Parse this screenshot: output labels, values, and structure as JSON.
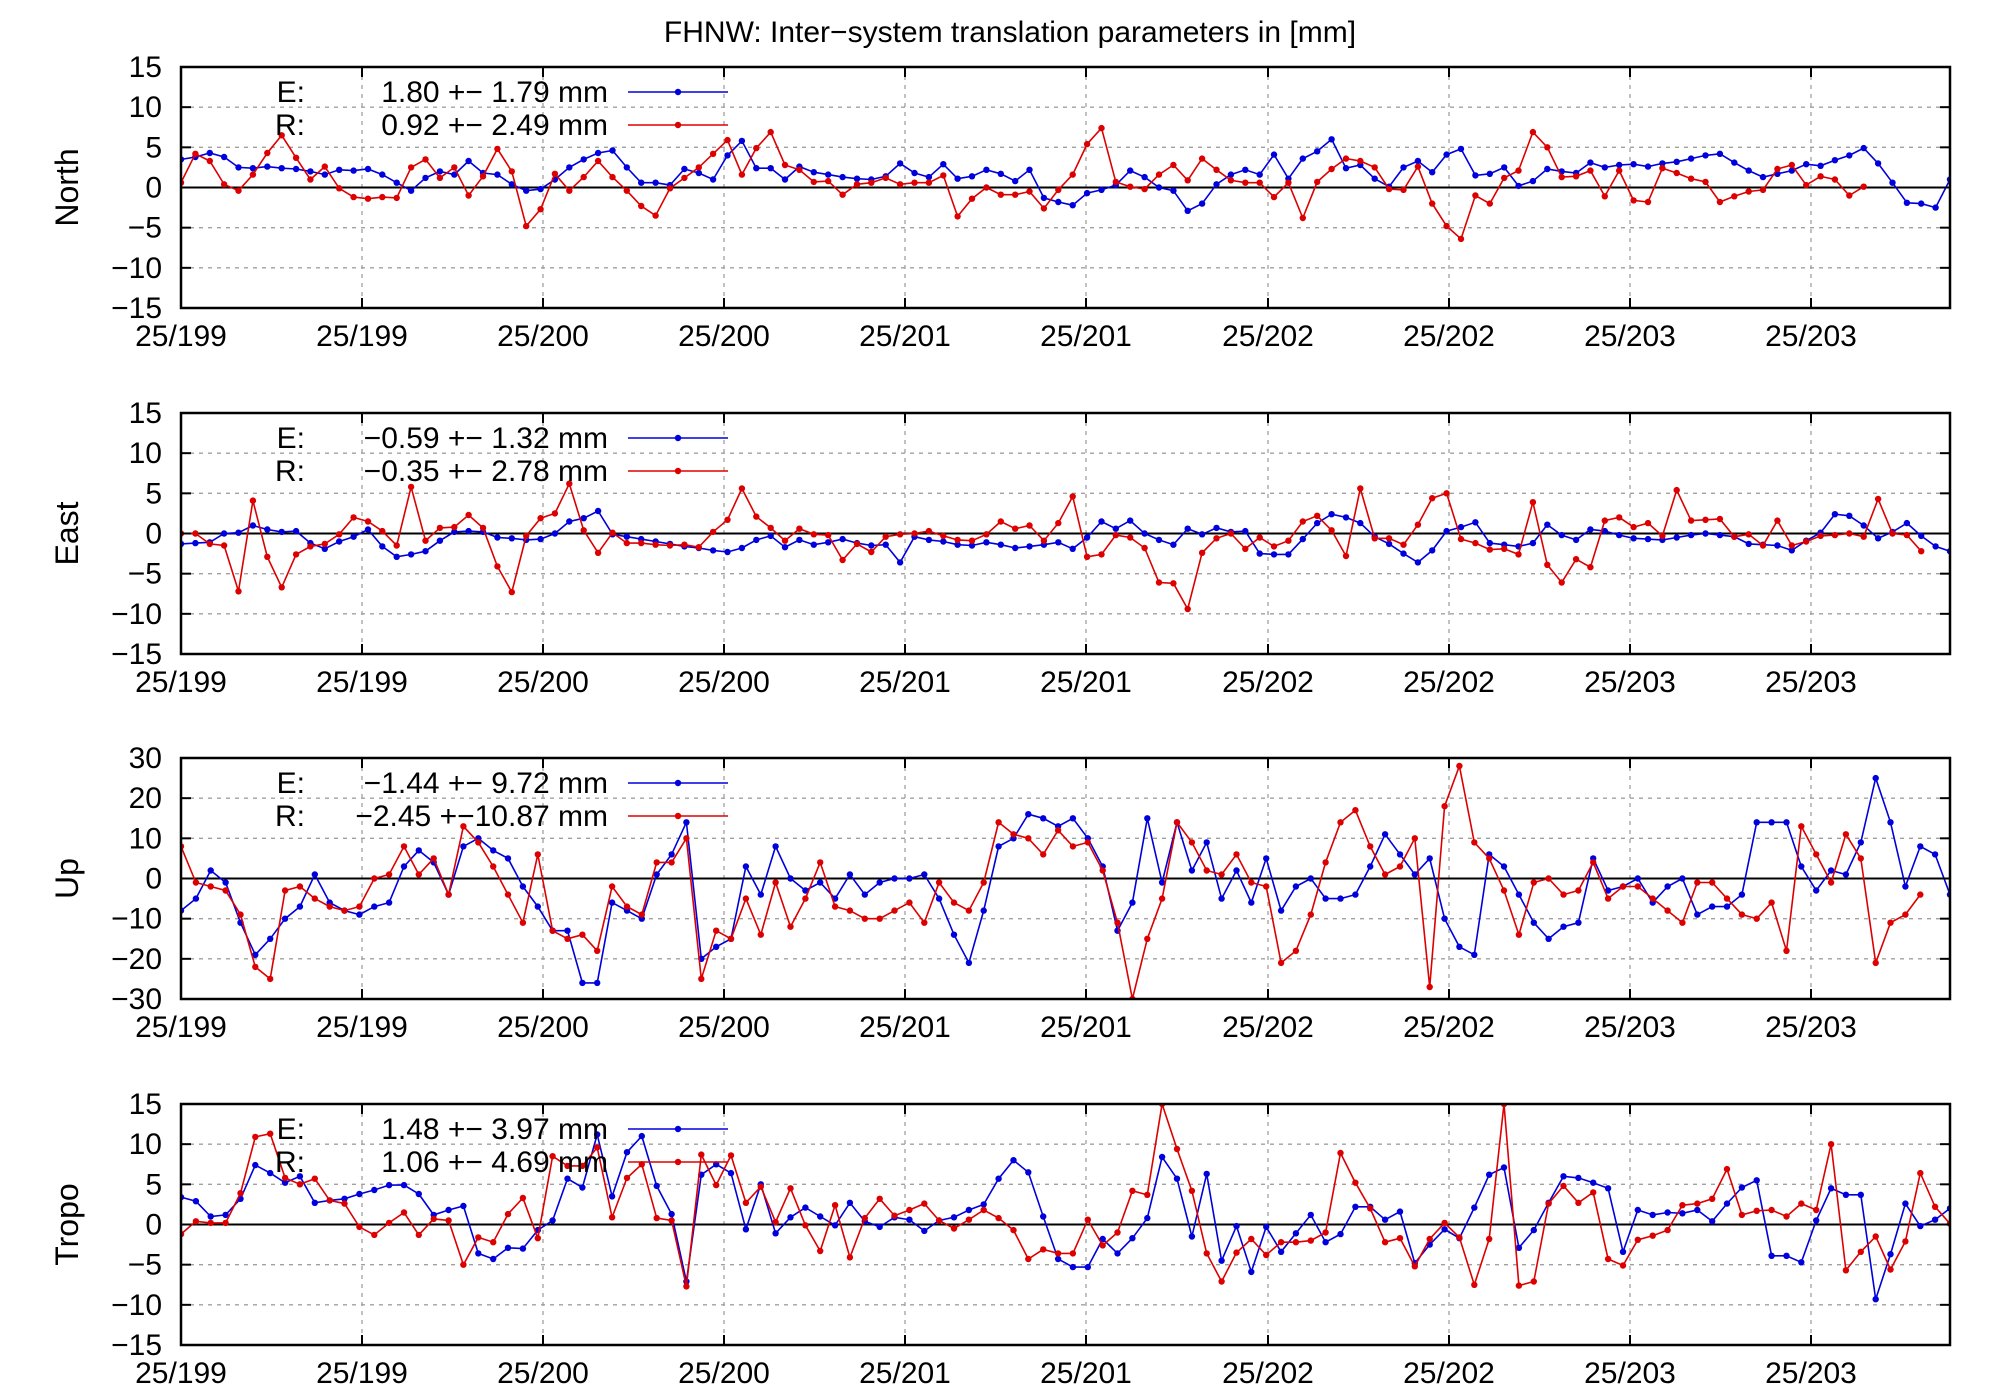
{
  "title": "FHNW: Inter−system translation parameters in [mm]",
  "colors": {
    "E": "#0000dd",
    "R": "#dd0000"
  },
  "x_tick_labels": [
    "25/199",
    "25/199",
    "25/200",
    "25/200",
    "25/201",
    "25/201",
    "25/202",
    "25/202",
    "25/203",
    "25/203"
  ],
  "chart_data": [
    {
      "type": "line",
      "ylabel": "North",
      "ylim": [
        -15,
        15
      ],
      "yticks": [
        "15",
        "10",
        "5",
        "0",
        "−5",
        "−10",
        "−15"
      ],
      "legend": [
        {
          "label": "E:",
          "text": "1.80 +− 1.79 mm"
        },
        {
          "label": "R:",
          "text": "0.92 +− 2.49 mm"
        }
      ],
      "series": [
        {
          "name": "E",
          "values": [
            3.5,
            3.8,
            4.3,
            3.8,
            2.5,
            2.4,
            2.6,
            2.4,
            2.3,
            2.0,
            1.6,
            2.2,
            2.1,
            2.3,
            1.6,
            0.6,
            -0.4,
            1.2,
            2.0,
            1.6,
            3.3,
            1.8,
            1.6,
            0.4,
            -0.4,
            -0.2,
            1.0,
            2.5,
            3.5,
            4.3,
            4.6,
            2.5,
            0.6,
            0.6,
            0.3,
            2.3,
            1.8,
            1.0,
            4.0,
            5.8,
            2.4,
            2.4,
            1.0,
            2.6,
            1.9,
            1.6,
            1.3,
            1.1,
            1.0,
            1.4,
            3.0,
            1.8,
            1.3,
            2.9,
            1.1,
            1.4,
            2.2,
            1.7,
            0.8,
            2.2,
            -1.3,
            -1.8,
            -2.2,
            -0.7,
            -0.3,
            0.3,
            2.1,
            1.3,
            0.0,
            -0.4,
            -2.9,
            -2.0,
            0.4,
            1.6,
            2.2,
            1.6,
            4.1,
            1.1,
            3.6,
            4.5,
            6.0,
            2.4,
            2.8,
            1.1,
            0.1,
            2.5,
            3.3,
            1.9,
            4.1,
            4.8,
            1.5,
            1.7,
            2.5,
            0.2,
            0.8,
            2.3,
            2.0,
            1.8,
            3.1,
            2.5,
            2.8,
            2.9,
            2.6,
            3.0,
            3.2,
            3.6,
            4.0,
            4.2,
            3.1,
            2.1,
            1.3,
            1.7,
            2.1,
            2.9,
            2.7,
            3.4,
            4.0,
            4.9,
            3.0,
            0.6,
            -1.9,
            -2.0,
            -2.5,
            1.0
          ]
        },
        {
          "name": "R",
          "values": [
            0.6,
            4.2,
            3.3,
            0.4,
            -0.4,
            1.6,
            4.3,
            6.5,
            3.7,
            1.0,
            2.6,
            -0.1,
            -1.2,
            -1.4,
            -1.2,
            -1.3,
            2.5,
            3.5,
            1.2,
            2.5,
            -1.0,
            1.4,
            4.8,
            2.0,
            -4.8,
            -2.7,
            1.7,
            -0.4,
            1.3,
            3.3,
            1.3,
            -0.4,
            -2.3,
            -3.5,
            -0.1,
            1.2,
            2.5,
            4.2,
            5.9,
            1.6,
            4.9,
            6.9,
            2.8,
            2.2,
            0.7,
            0.8,
            -0.9,
            0.4,
            0.6,
            1.2,
            0.4,
            0.6,
            0.6,
            1.5,
            -3.6,
            -1.4,
            0.0,
            -0.9,
            -0.9,
            -0.5,
            -2.6,
            -0.3,
            1.6,
            5.4,
            7.4,
            0.7,
            0.1,
            -0.2,
            1.6,
            2.8,
            0.9,
            3.6,
            2.2,
            0.9,
            0.6,
            0.6,
            -1.2,
            0.6,
            -3.8,
            0.7,
            2.3,
            3.6,
            3.3,
            2.5,
            -0.2,
            -0.3,
            2.6,
            -2.0,
            -4.8,
            -6.4,
            -1.0,
            -2.0,
            1.2,
            2.1,
            6.9,
            5.0,
            1.3,
            1.4,
            2.1,
            -1.1,
            2.1,
            -1.6,
            -1.8,
            2.4,
            1.8,
            1.1,
            0.7,
            -1.8,
            -1.1,
            -0.5,
            -0.3,
            2.3,
            2.8,
            0.3,
            1.4,
            1.0,
            -1.0,
            0.1
          ]
        }
      ]
    },
    {
      "type": "line",
      "ylabel": "East",
      "ylim": [
        -15,
        15
      ],
      "yticks": [
        "15",
        "10",
        "5",
        "0",
        "−5",
        "−10",
        "−15"
      ],
      "legend": [
        {
          "label": "E:",
          "text": "−0.59 +− 1.32 mm"
        },
        {
          "label": "R:",
          "text": "−0.35 +− 2.78 mm"
        }
      ],
      "series": [
        {
          "name": "E",
          "values": [
            -1.3,
            -1.2,
            -1.1,
            0.0,
            0.1,
            1.0,
            0.5,
            0.2,
            0.3,
            -1.2,
            -1.9,
            -1.0,
            -0.4,
            0.5,
            -1.6,
            -2.9,
            -2.6,
            -2.2,
            -0.9,
            0.2,
            0.3,
            0.2,
            -0.5,
            -0.6,
            -0.8,
            -0.7,
            0.0,
            1.5,
            1.9,
            2.8,
            -0.1,
            -0.4,
            -0.7,
            -1.0,
            -1.3,
            -1.6,
            -1.8,
            -2.1,
            -2.3,
            -1.8,
            -0.8,
            -0.3,
            -1.7,
            -0.8,
            -1.4,
            -1.1,
            -0.7,
            -1.2,
            -1.5,
            -1.4,
            -3.6,
            -0.4,
            -0.8,
            -1.0,
            -1.4,
            -1.5,
            -1.1,
            -1.4,
            -1.8,
            -1.6,
            -1.4,
            -1.1,
            -1.9,
            -0.5,
            1.5,
            0.6,
            1.6,
            0.0,
            -0.8,
            -1.4,
            0.6,
            -0.1,
            0.7,
            0.2,
            0.3,
            -2.5,
            -2.6,
            -2.6,
            -0.7,
            1.3,
            2.4,
            2.0,
            1.3,
            -0.4,
            -1.3,
            -2.5,
            -3.6,
            -2.1,
            0.3,
            0.8,
            1.4,
            -1.2,
            -1.4,
            -1.6,
            -1.2,
            1.1,
            -0.2,
            -0.8,
            0.5,
            0.3,
            -0.2,
            -0.6,
            -0.7,
            -0.8,
            -0.5,
            -0.2,
            0.0,
            -0.2,
            -0.4,
            -1.3,
            -1.4,
            -1.5,
            -2.1,
            -0.9,
            0.1,
            2.4,
            2.2,
            1.0,
            -0.6,
            0.2,
            1.3,
            -0.3,
            -1.6,
            -2.2
          ]
        },
        {
          "name": "R",
          "values": [
            0.0,
            0.0,
            -1.3,
            -1.5,
            -7.2,
            4.1,
            -2.9,
            -6.7,
            -2.6,
            -1.6,
            -1.3,
            -0.1,
            2.0,
            1.5,
            0.3,
            -1.5,
            5.8,
            -0.9,
            0.7,
            0.8,
            2.3,
            0.7,
            -4.1,
            -7.3,
            -0.3,
            1.9,
            2.5,
            6.2,
            0.4,
            -2.4,
            0.1,
            -1.2,
            -1.2,
            -1.4,
            -1.5,
            -1.4,
            -1.7,
            0.2,
            1.7,
            5.6,
            2.1,
            0.7,
            -0.9,
            0.6,
            -0.1,
            -0.2,
            -3.3,
            -1.3,
            -2.3,
            -0.4,
            -0.1,
            0.0,
            0.3,
            -0.3,
            -0.8,
            -0.9,
            -0.1,
            1.5,
            0.6,
            1.0,
            -0.9,
            1.3,
            4.6,
            -2.9,
            -2.6,
            -0.2,
            -0.5,
            -1.8,
            -6.1,
            -6.2,
            -9.4,
            -2.4,
            -0.6,
            0.0,
            -1.9,
            -0.5,
            -1.6,
            -0.9,
            1.5,
            2.2,
            0.4,
            -2.8,
            5.6,
            -0.6,
            -0.6,
            -1.4,
            1.1,
            4.4,
            5.0,
            -0.7,
            -1.2,
            -2.0,
            -1.9,
            -2.6,
            3.9,
            -3.9,
            -6.1,
            -3.2,
            -4.2,
            1.6,
            2.0,
            0.8,
            1.3,
            -0.3,
            5.4,
            1.6,
            1.7,
            1.8,
            -0.4,
            -0.1,
            -1.5,
            1.6,
            -1.5,
            -1.0,
            -0.3,
            -0.2,
            0.0,
            -0.4,
            4.3,
            0.0,
            -0.2,
            -2.2
          ]
        }
      ]
    },
    {
      "type": "line",
      "ylabel": "Up",
      "ylim": [
        -30,
        30
      ],
      "yticks": [
        "30",
        "20",
        "10",
        "0",
        "−10",
        "−20",
        "−30"
      ],
      "legend": [
        {
          "label": "E:",
          "text": "−1.44 +− 9.72 mm"
        },
        {
          "label": "R:",
          "text": "−2.45 +−10.87 mm"
        }
      ],
      "series": [
        {
          "name": "E",
          "values": [
            -8,
            -5,
            2,
            -1,
            -11,
            -19,
            -15,
            -10,
            -7,
            1,
            -6,
            -8,
            -9,
            -7,
            -6,
            3,
            7,
            4,
            -4,
            8,
            10,
            7,
            5,
            -2,
            -7,
            -13,
            -13,
            -26,
            -26,
            -6,
            -8,
            -10,
            1,
            6,
            14,
            -20,
            -17,
            -15,
            3,
            -4,
            8,
            0,
            -3,
            -1,
            -5,
            1,
            -4,
            -1,
            0,
            0,
            1,
            -5,
            -14,
            -21,
            -8,
            8,
            10,
            16,
            15,
            13,
            15,
            10,
            3,
            -13,
            -6,
            15,
            -1,
            14,
            2,
            9,
            -5,
            2,
            -6,
            5,
            -8,
            -2,
            0,
            -5,
            -5,
            -4,
            3,
            11,
            6,
            1,
            5,
            -10,
            -17,
            -19,
            6,
            3,
            -4,
            -11,
            -15,
            -12,
            -11,
            5,
            -3,
            -2,
            0,
            -6,
            -2,
            0,
            -9,
            -7,
            -7,
            -4,
            14,
            14,
            14,
            3,
            -3,
            2,
            1,
            9,
            25,
            14,
            -2,
            8,
            6,
            -4
          ]
        },
        {
          "name": "R",
          "values": [
            8,
            -1,
            -2,
            -3,
            -9,
            -22,
            -25,
            -3,
            -2,
            -5,
            -7,
            -8,
            -7,
            0,
            1,
            8,
            1,
            5,
            -4,
            13,
            9,
            3,
            -4,
            -11,
            6,
            -13,
            -15,
            -14,
            -18,
            -2,
            -7,
            -9,
            4,
            4,
            10,
            -25,
            -13,
            -15,
            -5,
            -14,
            -1,
            -12,
            -5,
            4,
            -7,
            -8,
            -10,
            -10,
            -8,
            -6,
            -11,
            -1,
            -6,
            -8,
            -1,
            14,
            11,
            10,
            6,
            12,
            8,
            9,
            2,
            -11,
            -30,
            -15,
            -5,
            14,
            9,
            2,
            1,
            6,
            -1,
            -2,
            -21,
            -18,
            -9,
            4,
            14,
            17,
            8,
            1,
            3,
            10,
            -27,
            18,
            28,
            9,
            5,
            -3,
            -14,
            -1,
            0,
            -4,
            -3,
            4,
            -5,
            -2,
            -2,
            -5,
            -8,
            -11,
            -1,
            -1,
            -5,
            -9,
            -10,
            -6,
            -18,
            13,
            6,
            -1,
            11,
            5,
            -21,
            -11,
            -9,
            -4
          ]
        }
      ]
    },
    {
      "type": "line",
      "ylabel": "Tropo",
      "ylim": [
        -15,
        15
      ],
      "yticks": [
        "15",
        "10",
        "5",
        "0",
        "−5",
        "−10",
        "−15"
      ],
      "legend": [
        {
          "label": "E:",
          "text": "1.48 +− 3.97 mm"
        },
        {
          "label": "R:",
          "text": "1.06 +− 4.69 mm"
        }
      ],
      "series": [
        {
          "name": "E",
          "values": [
            3.4,
            2.9,
            1.0,
            1.2,
            3.2,
            7.4,
            6.4,
            5.2,
            6.0,
            2.7,
            3.0,
            3.2,
            3.8,
            4.3,
            4.9,
            4.9,
            3.8,
            1.2,
            1.8,
            2.3,
            -3.6,
            -4.3,
            -2.9,
            -3.0,
            -0.7,
            0.5,
            5.7,
            4.6,
            11.2,
            3.5,
            9.0,
            11.0,
            4.8,
            1.3,
            -7.1,
            6.2,
            7.5,
            6.4,
            -0.6,
            5.0,
            -1.1,
            0.9,
            2.1,
            1.0,
            -0.1,
            2.7,
            0.4,
            -0.3,
            0.9,
            0.6,
            -0.8,
            0.5,
            0.9,
            1.8,
            2.5,
            5.7,
            8.0,
            6.5,
            1.0,
            -4.3,
            -5.3,
            -5.3,
            -1.8,
            -3.6,
            -1.7,
            0.8,
            8.4,
            5.7,
            -1.5,
            6.3,
            -4.5,
            -0.2,
            -5.9,
            -0.3,
            -3.4,
            -1.1,
            1.2,
            -2.2,
            -1.2,
            2.2,
            2.2,
            0.6,
            1.6,
            -4.8,
            -2.5,
            -0.6,
            -1.7,
            2.1,
            6.2,
            7.1,
            -2.9,
            -0.7,
            2.7,
            6.0,
            5.8,
            5.2,
            4.5,
            -3.4,
            1.8,
            1.2,
            1.5,
            1.4,
            1.8,
            0.4,
            2.6,
            4.6,
            5.5,
            -3.9,
            -3.9,
            -4.7,
            0.5,
            4.5,
            3.7,
            3.7,
            -9.3,
            -3.7,
            2.6,
            -0.2,
            0.6,
            2.0
          ]
        },
        {
          "name": "R",
          "values": [
            -1.2,
            0.4,
            0.2,
            0.2,
            3.9,
            10.9,
            11.3,
            5.8,
            5.0,
            5.7,
            3.0,
            2.6,
            -0.3,
            -1.3,
            0.2,
            1.5,
            -1.3,
            0.7,
            0.5,
            -5.0,
            -1.6,
            -2.2,
            1.3,
            3.3,
            -1.7,
            8.5,
            7.3,
            7.3,
            9.6,
            0.9,
            5.8,
            7.5,
            0.8,
            0.5,
            -7.7,
            8.7,
            4.9,
            8.6,
            2.7,
            4.7,
            0.3,
            4.5,
            -0.1,
            -3.3,
            2.4,
            -4.1,
            0.8,
            3.2,
            1.1,
            1.8,
            2.6,
            0.5,
            -0.5,
            0.6,
            1.8,
            0.8,
            -0.7,
            -4.3,
            -3.1,
            -3.6,
            -3.6,
            0.6,
            -2.6,
            -1.0,
            4.2,
            3.7,
            15.0,
            9.4,
            4.2,
            -3.6,
            -7.1,
            -3.5,
            -1.8,
            -3.8,
            -2.2,
            -2.2,
            -2.0,
            -1.0,
            8.9,
            5.2,
            2.0,
            -2.2,
            -1.7,
            -5.2,
            -1.8,
            0.2,
            -1.6,
            -7.5,
            -1.8,
            15.0,
            -7.6,
            -7.1,
            2.6,
            4.8,
            2.7,
            4.0,
            -4.3,
            -5.1,
            -1.9,
            -1.4,
            -0.7,
            2.4,
            2.6,
            3.2,
            6.9,
            1.2,
            1.7,
            1.8,
            1.0,
            2.6,
            1.8,
            10.0,
            -5.7,
            -3.4,
            -1.5,
            -5.6,
            -2.1,
            6.4,
            2.2,
            0.1,
            -1.8
          ]
        }
      ]
    }
  ]
}
